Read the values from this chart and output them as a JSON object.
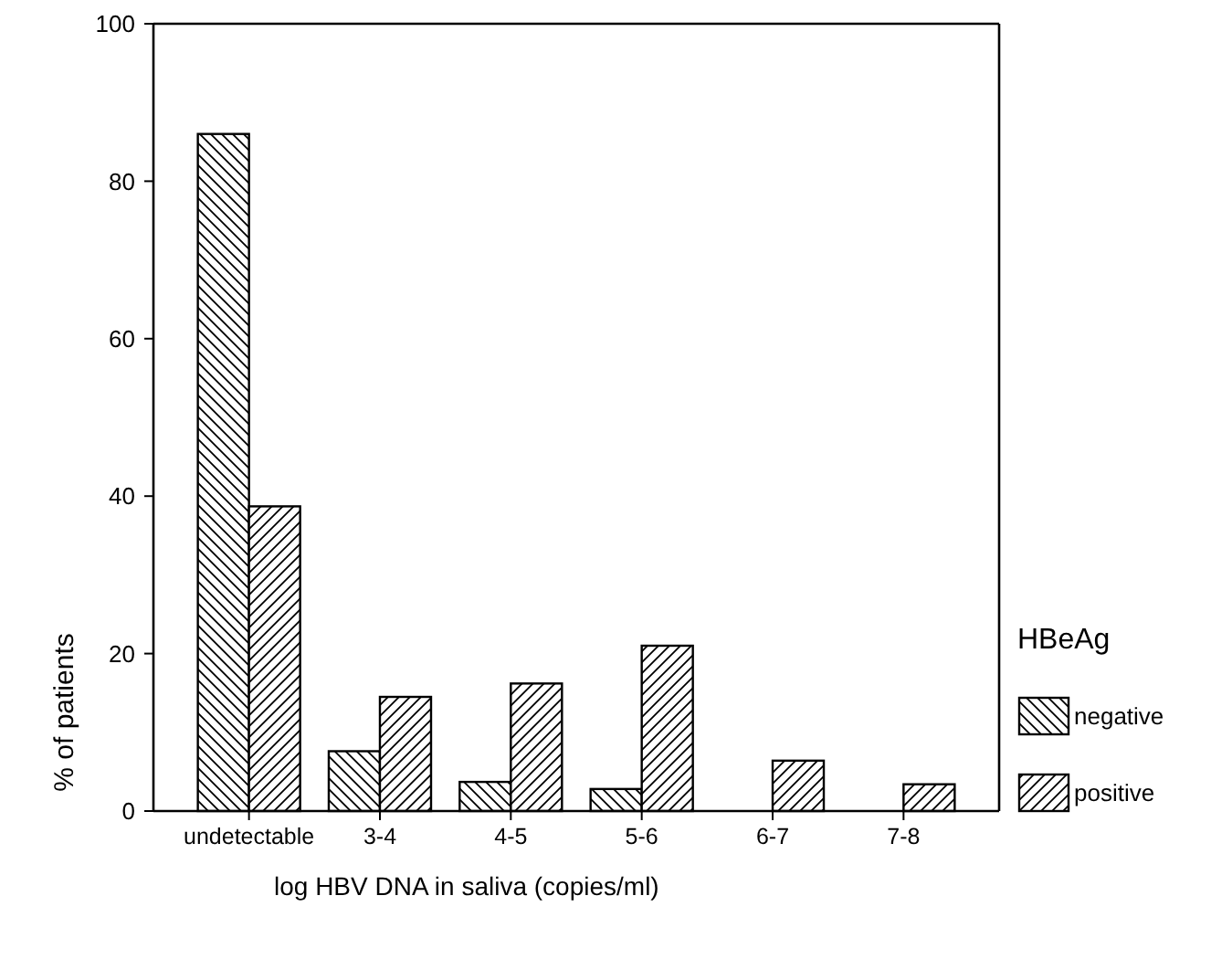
{
  "chart_data": {
    "type": "bar",
    "xlabel": "log HBV DNA in saliva (copies/ml)",
    "ylabel": "% of patients",
    "legend_title": "HBeAg",
    "categories": [
      "undetectable",
      "3-4",
      "4-5",
      "5-6",
      "6-7",
      "7-8"
    ],
    "series": [
      {
        "name": "negative",
        "color": "#000000",
        "values": [
          86,
          7.6,
          3.7,
          2.8,
          0,
          0
        ]
      },
      {
        "name": "positive",
        "color": "#000000",
        "values": [
          38.7,
          14.5,
          16.2,
          21,
          6.4,
          3.4
        ]
      }
    ],
    "ylim": [
      0,
      100
    ],
    "yticks": [
      0,
      20,
      40,
      60,
      80,
      100
    ],
    "grid": false,
    "legend": "right"
  }
}
